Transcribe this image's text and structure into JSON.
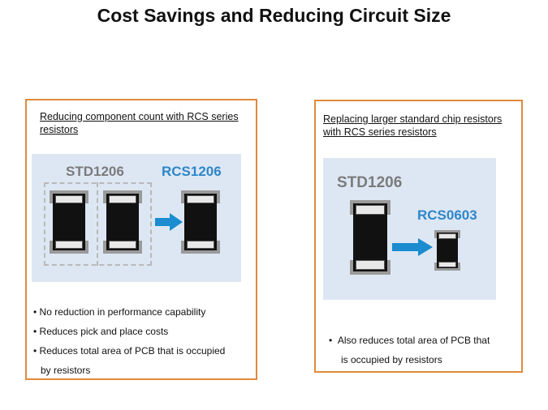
{
  "slide": {
    "title": "Cost Savings and Reducing Circuit Size"
  },
  "left_panel": {
    "heading": "Reducing  component count with RCS series resistors",
    "figure": {
      "std_label": "STD1206",
      "rcs_label": "RCS1206"
    },
    "bullets": [
      "No reduction in performance  capability",
      "Reduces pick and place costs",
      "Reduces total area of PCB that is occupied",
      "by resistors"
    ]
  },
  "right_panel": {
    "heading": "Replacing  larger standard chip resistors with RCS  series resistors",
    "figure": {
      "std_label": "STD1206",
      "rcs_label": "RCS0603"
    },
    "bullets": [
      "Also reduces total area of PCB that",
      "is occupied by resistors"
    ]
  },
  "colors": {
    "panel_border": "#e08a3c",
    "figure_bg": "#dde7f4",
    "rcs_blue": "#2e86c8",
    "std_gray": "#7b7b7b",
    "arrow_blue": "#1a8ccf"
  }
}
